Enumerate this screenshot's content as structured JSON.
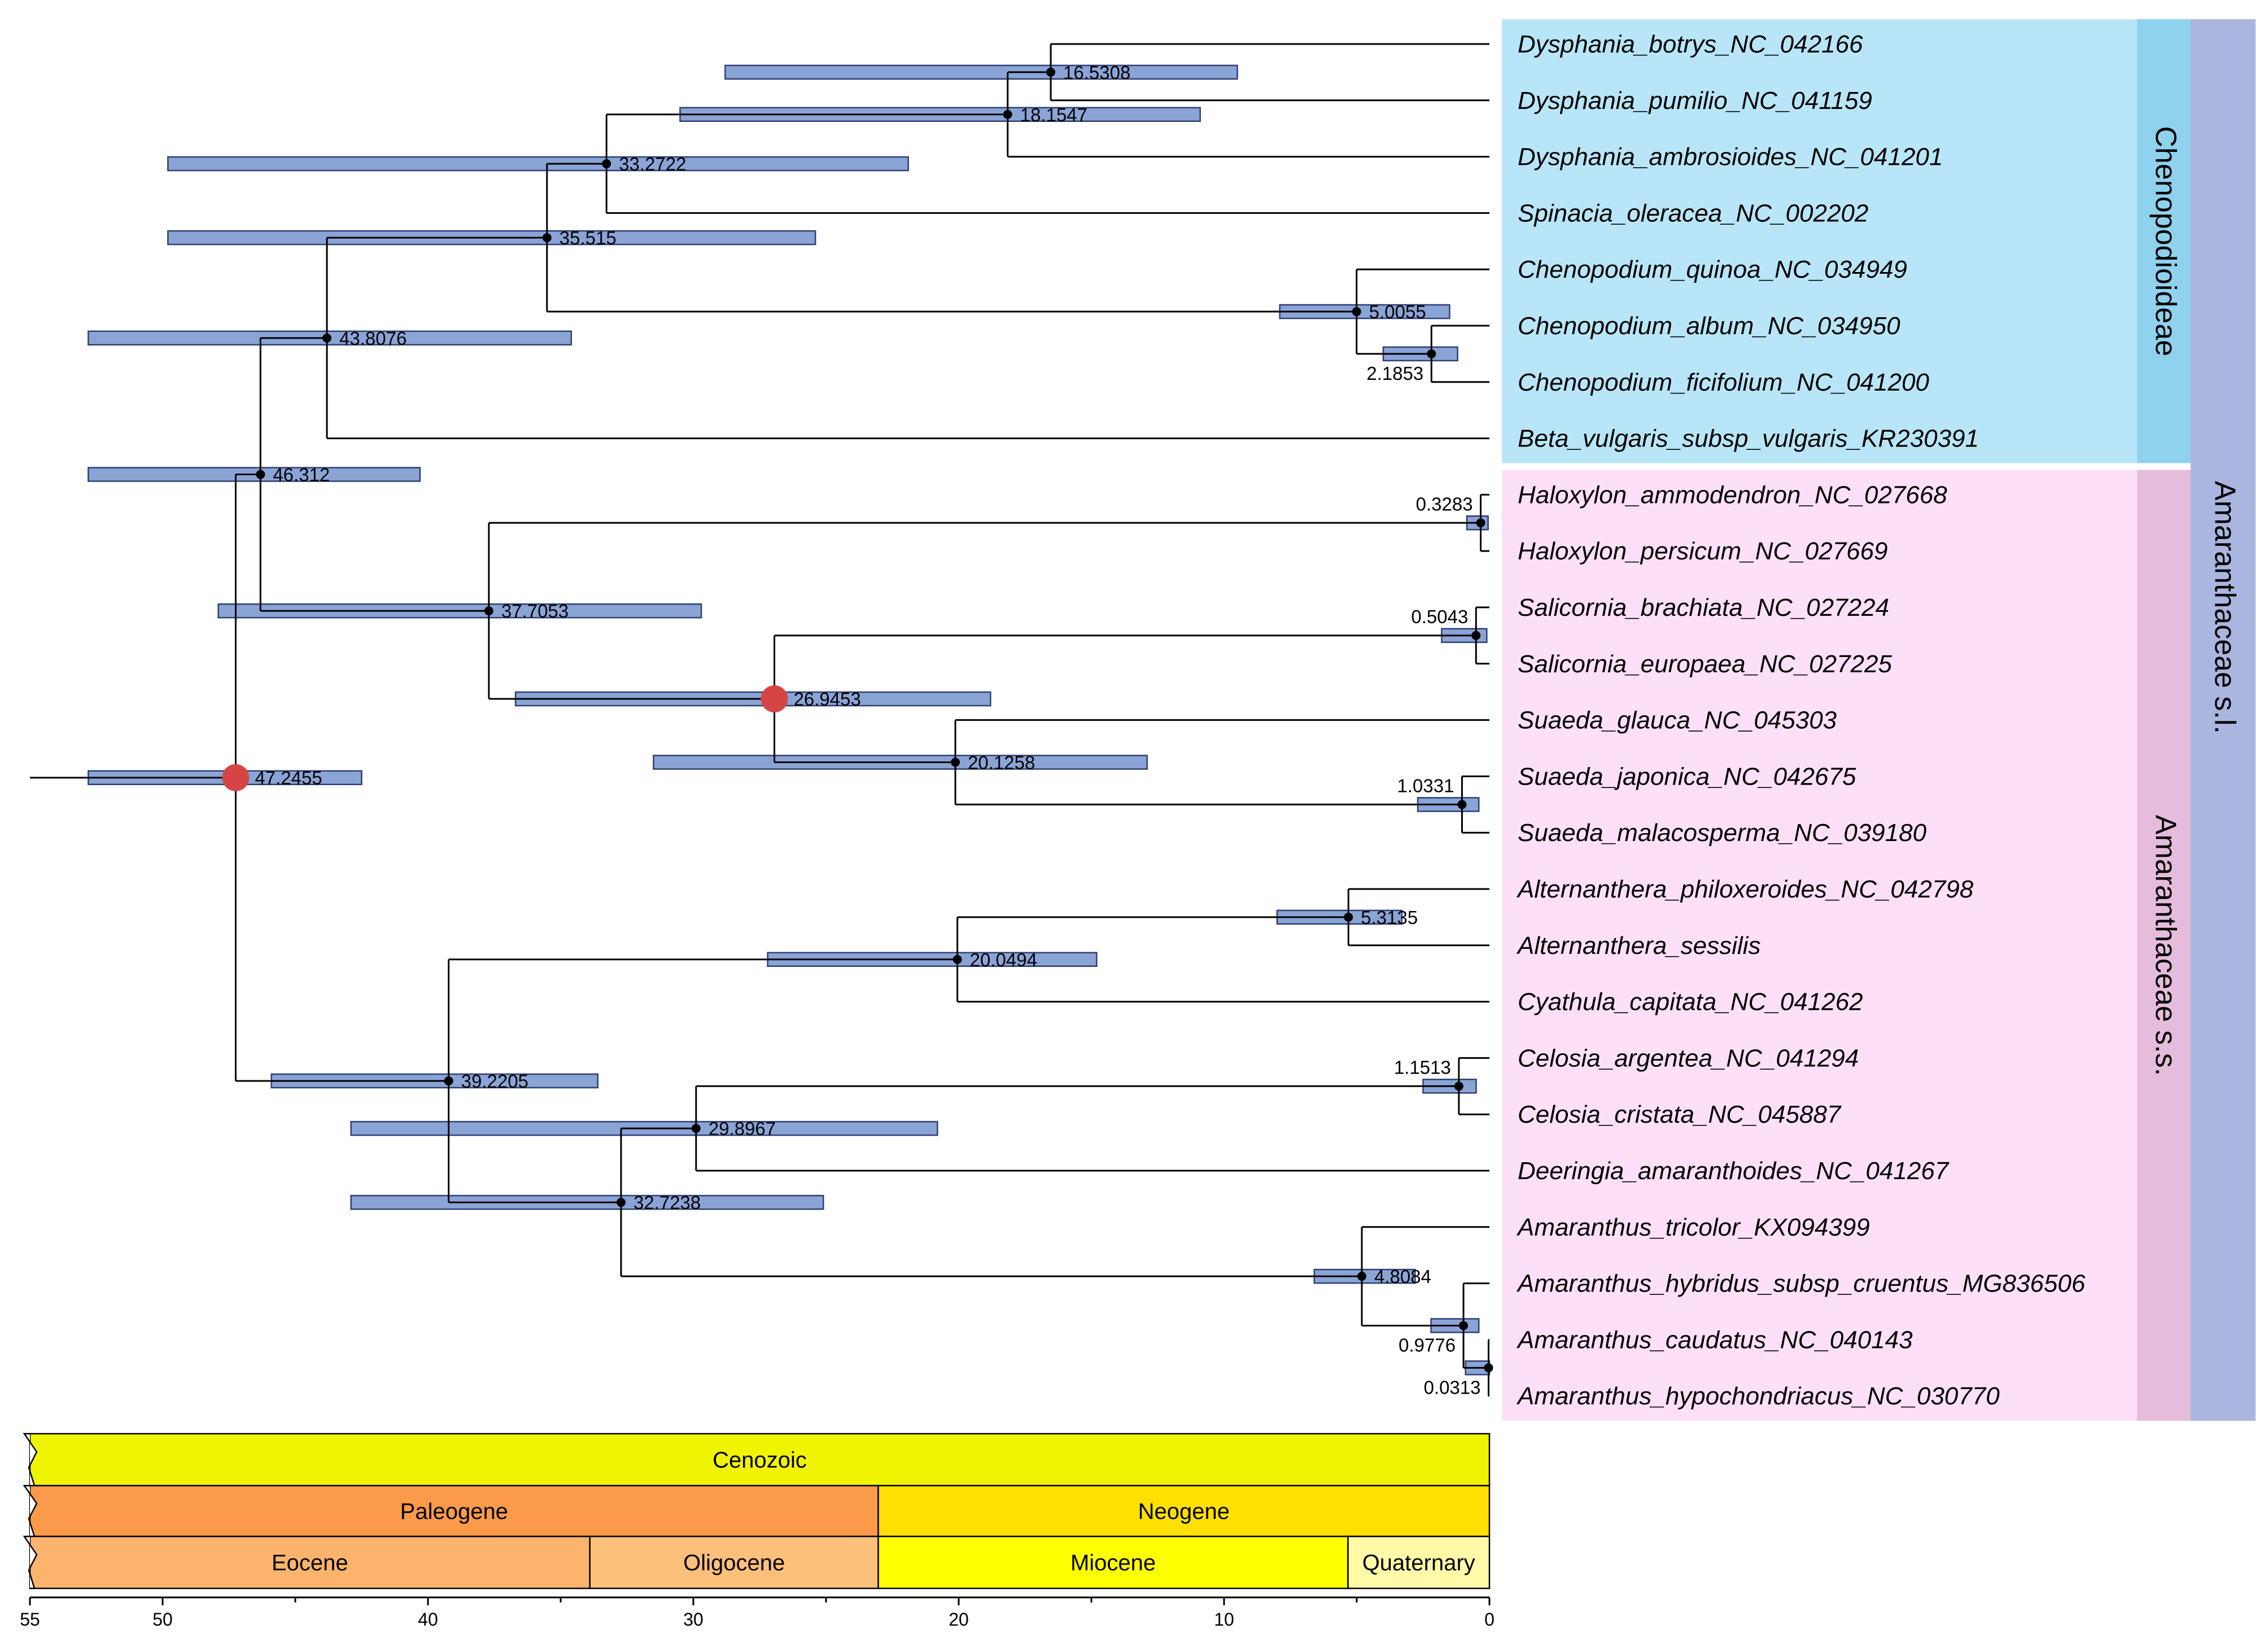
{
  "chart_data": {
    "type": "diagram",
    "subtype": "time-calibrated phylogenetic tree (chronogram)",
    "axis": {
      "min": 0,
      "max": 55,
      "direction": "reversed",
      "ticks": [
        "55",
        "50",
        "40",
        "30",
        "20",
        "10",
        "0"
      ]
    },
    "root_age": 55,
    "taxa": [
      "Dysphania_botrys_NC_042166",
      "Dysphania_pumilio_NC_041159",
      "Dysphania_ambrosioides_NC_041201",
      "Spinacia_oleracea_NC_002202",
      "Chenopodium_quinoa_NC_034949",
      "Chenopodium_album_NC_034950",
      "Chenopodium_ficifolium_NC_041200",
      "Beta_vulgaris_subsp_vulgaris_KR230391",
      "Haloxylon_ammodendron_NC_027668",
      "Haloxylon_persicum_NC_027669",
      "Salicornia_brachiata_NC_027224",
      "Salicornia_europaea_NC_027225",
      "Suaeda_glauca_NC_045303",
      "Suaeda_japonica_NC_042675",
      "Suaeda_malacosperma_NC_039180",
      "Alternanthera_philoxeroides_NC_042798",
      "Alternanthera_sessilis",
      "Cyathula_capitata_NC_041262",
      "Celosia_argentea_NC_041294",
      "Celosia_cristata_NC_045887",
      "Deeringia_amaranthoides_NC_041267",
      "Amaranthus_tricolor_KX094399",
      "Amaranthus_hybridus_subsp_cruentus_MG836506",
      "Amaranthus_caudatus_NC_040143",
      "Amaranthus_hypochondriacus_NC_030770"
    ],
    "nodes": [
      {
        "id": "n1",
        "age": 16.5308,
        "label": "16.5308",
        "hpd": [
          9.5,
          28.8
        ],
        "children": [
          "t0",
          "t1"
        ],
        "label_side": "right"
      },
      {
        "id": "n2",
        "age": 18.1547,
        "label": "18.1547",
        "hpd": [
          10.9,
          30.5
        ],
        "children": [
          "n1",
          "t2"
        ],
        "label_side": "right"
      },
      {
        "id": "n3",
        "age": 33.2722,
        "label": "33.2722",
        "hpd": [
          21.9,
          49.8
        ],
        "children": [
          "n2",
          "t3"
        ],
        "label_side": "right"
      },
      {
        "id": "n4",
        "age": 2.1853,
        "label": "2.1853",
        "hpd": [
          1.2,
          4.0
        ],
        "children": [
          "t5",
          "t6"
        ],
        "label_side": "below-left"
      },
      {
        "id": "n5",
        "age": 5.0055,
        "label": "5.0055",
        "hpd": [
          1.5,
          7.9
        ],
        "children": [
          "t4",
          "n4"
        ],
        "label_side": "right"
      },
      {
        "id": "n6",
        "age": 35.515,
        "label": "35.515",
        "hpd": [
          25.4,
          49.8
        ],
        "children": [
          "n3",
          "n5"
        ],
        "label_side": "right"
      },
      {
        "id": "n7",
        "age": 43.8076,
        "label": "43.8076",
        "hpd": [
          34.6,
          52.8
        ],
        "children": [
          "n6",
          "t7"
        ],
        "label_side": "right"
      },
      {
        "id": "n8",
        "age": 0.3283,
        "label": "0.3283",
        "hpd": [
          0.05,
          0.85
        ],
        "children": [
          "t8",
          "t9"
        ],
        "label_side": "above-left"
      },
      {
        "id": "n9",
        "age": 0.5043,
        "label": "0.5043",
        "hpd": [
          0.1,
          1.8
        ],
        "children": [
          "t10",
          "t11"
        ],
        "label_side": "above-left"
      },
      {
        "id": "n10",
        "age": 1.0331,
        "label": "1.0331",
        "hpd": [
          0.4,
          2.7
        ],
        "children": [
          "t13",
          "t14"
        ],
        "label_side": "above-left"
      },
      {
        "id": "n11",
        "age": 20.1258,
        "label": "20.1258",
        "hpd": [
          12.9,
          31.5
        ],
        "children": [
          "t12",
          "n10"
        ],
        "label_side": "right"
      },
      {
        "id": "n12",
        "age": 26.9453,
        "label": "26.9453",
        "hpd": [
          18.8,
          36.7
        ],
        "children": [
          "n9",
          "n11"
        ],
        "label_side": "right",
        "highlight": true
      },
      {
        "id": "n13",
        "age": 37.7053,
        "label": "37.7053",
        "hpd": [
          29.7,
          47.9
        ],
        "children": [
          "n8",
          "n12"
        ],
        "label_side": "right"
      },
      {
        "id": "n14",
        "age": 46.312,
        "label": "46.312",
        "hpd": [
          40.3,
          52.8
        ],
        "children": [
          "n7",
          "n13"
        ],
        "label_side": "right"
      },
      {
        "id": "n15",
        "age": 5.3135,
        "label": "5.3135",
        "hpd": [
          3.3,
          8.0
        ],
        "children": [
          "t15",
          "t16"
        ],
        "label_side": "right"
      },
      {
        "id": "n16",
        "age": 20.0494,
        "label": "20.0494",
        "hpd": [
          14.8,
          27.2
        ],
        "children": [
          "n15",
          "t17"
        ],
        "label_side": "right"
      },
      {
        "id": "n17",
        "age": 1.1513,
        "label": "1.1513",
        "hpd": [
          0.5,
          2.5
        ],
        "children": [
          "t18",
          "t19"
        ],
        "label_side": "above-left"
      },
      {
        "id": "n18",
        "age": 29.8967,
        "label": "29.8967",
        "hpd": [
          20.8,
          42.9
        ],
        "children": [
          "n17",
          "t20"
        ],
        "label_side": "right"
      },
      {
        "id": "n19",
        "age": 0.0313,
        "label": "0.0313",
        "hpd": [
          0.0,
          0.9
        ],
        "children": [
          "t23",
          "t24"
        ],
        "label_side": "below-left"
      },
      {
        "id": "n20",
        "age": 0.9776,
        "label": "0.9776",
        "hpd": [
          0.4,
          2.2
        ],
        "children": [
          "t22",
          "n19"
        ],
        "label_side": "below-left"
      },
      {
        "id": "n21",
        "age": 4.8084,
        "label": "4.8084",
        "hpd": [
          2.8,
          6.6
        ],
        "children": [
          "t21",
          "n20"
        ],
        "label_side": "right"
      },
      {
        "id": "n22",
        "age": 32.7238,
        "label": "32.7238",
        "hpd": [
          25.1,
          42.9
        ],
        "children": [
          "n18",
          "n21"
        ],
        "label_side": "right"
      },
      {
        "id": "n23",
        "age": 39.2205,
        "label": "39.2205",
        "hpd": [
          33.6,
          45.9
        ],
        "children": [
          "n16",
          "n22"
        ],
        "label_side": "right"
      },
      {
        "id": "n24",
        "age": 47.2455,
        "label": "47.2455",
        "hpd": [
          42.5,
          52.8
        ],
        "children": [
          "n14",
          "n23"
        ],
        "label_side": "right",
        "highlight": true
      }
    ],
    "clades": [
      {
        "label": "Chenopodioideae",
        "from": 0,
        "to": 7,
        "color": "#b8e6f8",
        "bar_color": "#8fd2ee"
      },
      {
        "label": "Amaranthaceae s.s.",
        "from": 8,
        "to": 24,
        "color": "#fde0f8",
        "bar_color": "#e6bcdc"
      },
      {
        "label": "Amaranthaceae s.l.",
        "from": 0,
        "to": 24,
        "bar_color": "#aab6df"
      }
    ],
    "timescale": {
      "rows": [
        [
          {
            "label": "Cenozoic",
            "start": 55,
            "end": 0,
            "color": "#f0f400"
          }
        ],
        [
          {
            "label": "Paleogene",
            "start": 55,
            "end": 23.03,
            "color": "#fb9a4b"
          },
          {
            "label": "Neogene",
            "start": 23.03,
            "end": 0,
            "color": "#ffe000"
          }
        ],
        [
          {
            "label": "Eocene",
            "start": 55,
            "end": 33.9,
            "color": "#fcb46c"
          },
          {
            "label": "Oligocene",
            "start": 33.9,
            "end": 23.03,
            "color": "#fdc07a"
          },
          {
            "label": "Miocene",
            "start": 23.03,
            "end": 5.33,
            "color": "#ffff00"
          },
          {
            "label": "Quaternary",
            "start": 5.33,
            "end": 0,
            "color": "#fff9a8"
          }
        ]
      ]
    },
    "colors": {
      "highlight_node": "#d64545",
      "node": "#000000",
      "hpd_fill": "#8aa4d6",
      "hpd_stroke": "#2e3f73"
    }
  }
}
